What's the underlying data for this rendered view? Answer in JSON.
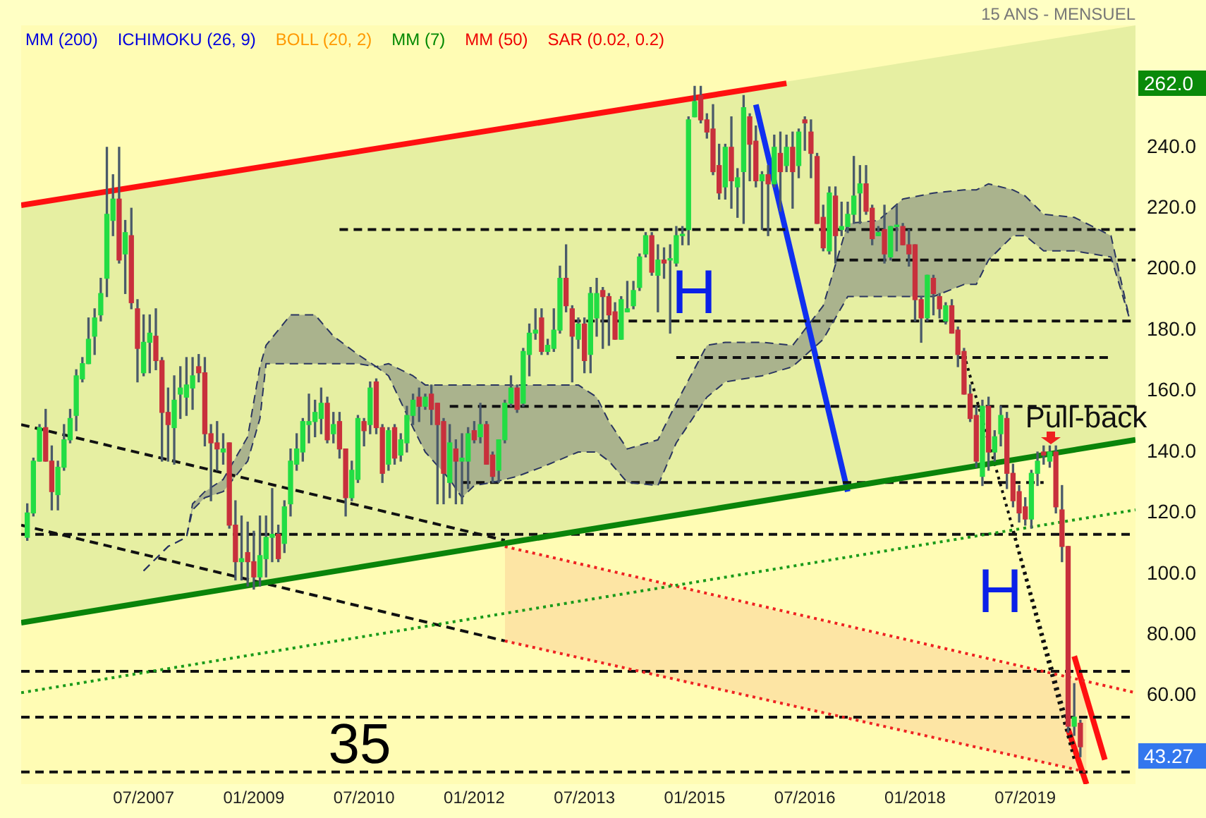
{
  "chart_data": {
    "type": "candlestick",
    "annotations": [
      "MM (200)",
      "ICHIMOKU (26, 9)",
      "BOLL (20, 2)",
      "MM (7)",
      "MM (50)",
      "SAR (0.02, 0.2)",
      "15 ANS - MENSUEL",
      "H",
      "H",
      "Pull-back",
      "35",
      "262.0",
      "43.27"
    ],
    "x": [
      "2005-12",
      "2006-01",
      "2006-02",
      "2006-03",
      "2006-04",
      "2006-05",
      "2006-06",
      "2006-07",
      "2006-08",
      "2006-09",
      "2006-10",
      "2006-11",
      "2006-12",
      "2007-01",
      "2007-02",
      "2007-03",
      "2007-04",
      "2007-05",
      "2007-06",
      "2007-07",
      "2007-08",
      "2007-09",
      "2007-10",
      "2007-11",
      "2007-12",
      "2008-01",
      "2008-02",
      "2008-03",
      "2008-04",
      "2008-05",
      "2008-06",
      "2008-07",
      "2008-08",
      "2008-09",
      "2008-10",
      "2008-11",
      "2008-12",
      "2009-01",
      "2009-02",
      "2009-03",
      "2009-04",
      "2009-05",
      "2009-06",
      "2009-07",
      "2009-08",
      "2009-09",
      "2009-10",
      "2009-11",
      "2009-12",
      "2010-01",
      "2010-02",
      "2010-03",
      "2010-04",
      "2010-05",
      "2010-06",
      "2010-07",
      "2010-08",
      "2010-09",
      "2010-10",
      "2010-11",
      "2010-12",
      "2011-01",
      "2011-02",
      "2011-03",
      "2011-04",
      "2011-05",
      "2011-06",
      "2011-07",
      "2011-08",
      "2011-09",
      "2011-10",
      "2011-11",
      "2011-12",
      "2012-01",
      "2012-02",
      "2012-03",
      "2012-04",
      "2012-05",
      "2012-06",
      "2012-07",
      "2012-08",
      "2012-09",
      "2012-10",
      "2012-11",
      "2012-12",
      "2013-01",
      "2013-02",
      "2013-03",
      "2013-04",
      "2013-05",
      "2013-06",
      "2013-07",
      "2013-08",
      "2013-09",
      "2013-10",
      "2013-11",
      "2013-12",
      "2014-01",
      "2014-02",
      "2014-03",
      "2014-04",
      "2014-05",
      "2014-06",
      "2014-07",
      "2014-08",
      "2014-09",
      "2014-10",
      "2014-11",
      "2014-12",
      "2015-01",
      "2015-02",
      "2015-03",
      "2015-04",
      "2015-05",
      "2015-06",
      "2015-07",
      "2015-08",
      "2015-09",
      "2015-10",
      "2015-11",
      "2015-12",
      "2016-01",
      "2016-02",
      "2016-03",
      "2016-04",
      "2016-05",
      "2016-06",
      "2016-07",
      "2016-08",
      "2016-09",
      "2016-10",
      "2016-11",
      "2016-12",
      "2017-01",
      "2017-02",
      "2017-03",
      "2017-04",
      "2017-05",
      "2017-06",
      "2017-07",
      "2017-08",
      "2017-09",
      "2017-10",
      "2017-11",
      "2017-12",
      "2018-01",
      "2018-02",
      "2018-03",
      "2018-04",
      "2018-05",
      "2018-06",
      "2018-07",
      "2018-08",
      "2018-09",
      "2018-10",
      "2018-11",
      "2018-12",
      "2019-01",
      "2019-02",
      "2019-03",
      "2019-04",
      "2019-05",
      "2019-06",
      "2019-07",
      "2019-08",
      "2019-09",
      "2019-10",
      "2019-11",
      "2019-12",
      "2020-01",
      "2020-02",
      "2020-03",
      "2020-04"
    ],
    "ohlc": [
      [
        112,
        123,
        111,
        120
      ],
      [
        120,
        138,
        119,
        137
      ],
      [
        137,
        149,
        137,
        148
      ],
      [
        148,
        154,
        137,
        137
      ],
      [
        137,
        142,
        121,
        127
      ],
      [
        126,
        137,
        121,
        135
      ],
      [
        135,
        149,
        134,
        144
      ],
      [
        144,
        154,
        143,
        151
      ],
      [
        152,
        167,
        147,
        165
      ],
      [
        164,
        171,
        163,
        169
      ],
      [
        169,
        184,
        169,
        177
      ],
      [
        178,
        187,
        172,
        184
      ],
      [
        185,
        197,
        183,
        192
      ],
      [
        197,
        240,
        191,
        218
      ],
      [
        216,
        231,
        211,
        223
      ],
      [
        223,
        240,
        202,
        203
      ],
      [
        205,
        216,
        192,
        212
      ],
      [
        211,
        220,
        187,
        189
      ],
      [
        187,
        190,
        163,
        174
      ],
      [
        166,
        185,
        165,
        176
      ],
      [
        176,
        185,
        166,
        179
      ],
      [
        178,
        187,
        167,
        170
      ],
      [
        170,
        171,
        137,
        153
      ],
      [
        153,
        161,
        137,
        149
      ],
      [
        148,
        165,
        136,
        157
      ],
      [
        159,
        168,
        151,
        161
      ],
      [
        158,
        171,
        152,
        162
      ],
      [
        161,
        171,
        154,
        165
      ],
      [
        168,
        172,
        163,
        166
      ],
      [
        166,
        171,
        142,
        146
      ],
      [
        146,
        149,
        124,
        143
      ],
      [
        143,
        150,
        134,
        141
      ],
      [
        140,
        146,
        136,
        141
      ],
      [
        143,
        143,
        115,
        116
      ],
      [
        116,
        124,
        98,
        104
      ],
      [
        104,
        119,
        98,
        105
      ],
      [
        107,
        117,
        96,
        104
      ],
      [
        104,
        114,
        95,
        99
      ],
      [
        99,
        119,
        96,
        106
      ],
      [
        105,
        119,
        99,
        112
      ],
      [
        112,
        128,
        104,
        113
      ],
      [
        113,
        116,
        104,
        105
      ],
      [
        110,
        124,
        107,
        122
      ],
      [
        123,
        141,
        119,
        137
      ],
      [
        136,
        146,
        134,
        141
      ],
      [
        140,
        151,
        137,
        150
      ],
      [
        149,
        159,
        143,
        150
      ],
      [
        150,
        157,
        145,
        153
      ],
      [
        151,
        161,
        146,
        156
      ],
      [
        156,
        158,
        143,
        144
      ],
      [
        146,
        153,
        143,
        149
      ],
      [
        150,
        153,
        138,
        141
      ],
      [
        141,
        141,
        119,
        125
      ],
      [
        125,
        137,
        124,
        134
      ],
      [
        131,
        152,
        130,
        151
      ],
      [
        150,
        151,
        142,
        147
      ],
      [
        149,
        163,
        146,
        161
      ],
      [
        163,
        164,
        146,
        148
      ],
      [
        148,
        149,
        130,
        133
      ],
      [
        136,
        148,
        134,
        147
      ],
      [
        148,
        149,
        136,
        138
      ],
      [
        139,
        146,
        137,
        144
      ],
      [
        143,
        155,
        140,
        152
      ],
      [
        152,
        159,
        149,
        157
      ],
      [
        158,
        161,
        150,
        155
      ],
      [
        155,
        159,
        154,
        158
      ],
      [
        159,
        162,
        149,
        154
      ],
      [
        156,
        156,
        123,
        149
      ],
      [
        150,
        151,
        123,
        133
      ],
      [
        130,
        149,
        125,
        143
      ],
      [
        141,
        144,
        123,
        137
      ],
      [
        137,
        146,
        123,
        138
      ],
      [
        137,
        148,
        128,
        146
      ],
      [
        147,
        150,
        143,
        144
      ],
      [
        145,
        156,
        143,
        149
      ],
      [
        149,
        150,
        136,
        136
      ],
      [
        139,
        140,
        130,
        132
      ],
      [
        134,
        144,
        130,
        144
      ],
      [
        144,
        157,
        143,
        156
      ],
      [
        156,
        165,
        155,
        161
      ],
      [
        161,
        162,
        153,
        154
      ],
      [
        156,
        174,
        155,
        173
      ],
      [
        172,
        182,
        165,
        179
      ],
      [
        179,
        187,
        177,
        180
      ],
      [
        184,
        187,
        172,
        173
      ],
      [
        173,
        177,
        172,
        175
      ],
      [
        174,
        187,
        173,
        180
      ],
      [
        180,
        201,
        179,
        197
      ],
      [
        197,
        208,
        186,
        188
      ],
      [
        187,
        188,
        163,
        178
      ],
      [
        177,
        184,
        174,
        182
      ],
      [
        182,
        184,
        166,
        170
      ],
      [
        172,
        194,
        166,
        192
      ],
      [
        184,
        197,
        178,
        192
      ],
      [
        193,
        194,
        174,
        191
      ],
      [
        191,
        192,
        175,
        185
      ],
      [
        186,
        189,
        177,
        177
      ],
      [
        177,
        191,
        177,
        190
      ],
      [
        186,
        196,
        186,
        187
      ],
      [
        188,
        196,
        187,
        193
      ],
      [
        194,
        205,
        193,
        204
      ],
      [
        205,
        212,
        204,
        211
      ],
      [
        211,
        212,
        198,
        199
      ],
      [
        198,
        208,
        186,
        203
      ],
      [
        203,
        207,
        197,
        202
      ],
      [
        203,
        208,
        179,
        203
      ],
      [
        202,
        214,
        201,
        211
      ],
      [
        211,
        214,
        208,
        211
      ],
      [
        213,
        250,
        208,
        249
      ],
      [
        250,
        260,
        250,
        255
      ],
      [
        257,
        260,
        248,
        249
      ],
      [
        249,
        251,
        243,
        245
      ],
      [
        246,
        254,
        231,
        232
      ],
      [
        234,
        241,
        223,
        225
      ],
      [
        227,
        241,
        223,
        240
      ],
      [
        240,
        250,
        220,
        229
      ],
      [
        227,
        233,
        217,
        230
      ],
      [
        232,
        257,
        215,
        253
      ],
      [
        250,
        251,
        229,
        241
      ],
      [
        242,
        247,
        227,
        229
      ],
      [
        229,
        232,
        213,
        231
      ],
      [
        231,
        234,
        211,
        228
      ],
      [
        228,
        244,
        227,
        240
      ],
      [
        238,
        245,
        219,
        232
      ],
      [
        234,
        244,
        232,
        240
      ],
      [
        240,
        245,
        220,
        232
      ],
      [
        234,
        246,
        230,
        245
      ],
      [
        249,
        250,
        239,
        248
      ],
      [
        245,
        249,
        230,
        238
      ],
      [
        237,
        238,
        215,
        215
      ],
      [
        217,
        221,
        206,
        207
      ],
      [
        206,
        227,
        205,
        225
      ],
      [
        224,
        227,
        202,
        211
      ],
      [
        213,
        222,
        211,
        214
      ],
      [
        214,
        222,
        212,
        218
      ],
      [
        218,
        237,
        215,
        224
      ],
      [
        225,
        234,
        215,
        228
      ],
      [
        228,
        234,
        218,
        219
      ],
      [
        220,
        221,
        208,
        210
      ],
      [
        211,
        214,
        211,
        212
      ],
      [
        213,
        221,
        202,
        205
      ],
      [
        204,
        214,
        203,
        214
      ],
      [
        214,
        221,
        206,
        214
      ],
      [
        214,
        215,
        208,
        208
      ],
      [
        208,
        213,
        201,
        205
      ],
      [
        208,
        208,
        183,
        190
      ],
      [
        190,
        191,
        176,
        184
      ],
      [
        184,
        198,
        183,
        198
      ],
      [
        197,
        198,
        185,
        192
      ],
      [
        191,
        192,
        184,
        187
      ],
      [
        183,
        189,
        182,
        188
      ],
      [
        188,
        190,
        179,
        179
      ],
      [
        180,
        181,
        168,
        172
      ],
      [
        173,
        174,
        159,
        159
      ],
      [
        159,
        162,
        150,
        151
      ],
      [
        152,
        155,
        135,
        137
      ],
      [
        132,
        157,
        129,
        155
      ],
      [
        155,
        158,
        134,
        140
      ],
      [
        140,
        147,
        137,
        145
      ],
      [
        146,
        155,
        142,
        152
      ],
      [
        151,
        153,
        128,
        133
      ],
      [
        133,
        136,
        122,
        124
      ],
      [
        127,
        129,
        117,
        120
      ],
      [
        122,
        125,
        116,
        118
      ],
      [
        118,
        134,
        115,
        133
      ],
      [
        133,
        140,
        129,
        137
      ],
      [
        140,
        142,
        136,
        139
      ],
      [
        137,
        142,
        135,
        140
      ],
      [
        140,
        142,
        120,
        122
      ],
      [
        121,
        129,
        104,
        109
      ],
      [
        109,
        109,
        48,
        50
      ],
      [
        50,
        64,
        47,
        53
      ],
      [
        51,
        52,
        40,
        43.27
      ]
    ],
    "series": [
      {
        "type": "line",
        "x": [
          "2005-11",
          "2021-01"
        ],
        "values": [
          84,
          144
        ],
        "lower": [
          84,
          144
        ],
        "upper": [
          221,
          280
        ],
        "color": "#0a840a",
        "line_style": "solid"
      },
      {
        "type": "line",
        "x": [
          "2012-06",
          "2020-05"
        ],
        "values": [
          78,
          35
        ],
        "lower": [
          78,
          35
        ],
        "upper": [
          109,
          64
        ],
        "color": "#ee2222",
        "line_style": "dotted"
      },
      {
        "type": "line",
        "x": [
          "2007-07",
          "2007-11",
          "2008-02",
          "2008-03",
          "2008-05",
          "2008-08",
          "2008-12",
          "2009-02",
          "2009-03",
          "2009-07",
          "2009-11",
          "2010-02",
          "2010-04",
          "2010-06",
          "2010-09",
          "2010-11",
          "2011-03",
          "2011-05",
          "2011-09",
          "2011-11",
          "2012-01",
          "2012-04",
          "2012-08",
          "2012-12",
          "2013-06",
          "2013-09",
          "2013-11",
          "2014-02",
          "2014-07",
          "2014-10",
          "2015-03",
          "2015-06",
          "2015-12",
          "2016-05",
          "2016-10",
          "2017-02",
          "2017-07",
          "2017-11",
          "2018-04",
          "2018-09",
          "2018-11",
          "2019-01",
          "2019-05",
          "2019-07",
          "2019-10",
          "2020-03",
          "2020-09",
          "2020-12"
        ],
        "lower": [
          101,
          109,
          112,
          121,
          125,
          127,
          137,
          151,
          169,
          169,
          169,
          169,
          169,
          169,
          168,
          165,
          148,
          140,
          131,
          125,
          129,
          130,
          132,
          135,
          140,
          140,
          137,
          130,
          129,
          143,
          158,
          163,
          165,
          168,
          177,
          191,
          191,
          191,
          191,
          195,
          195,
          203,
          211,
          211,
          206,
          206,
          204,
          184
        ],
        "upper": [
          101,
          109,
          112,
          123,
          127,
          131,
          145,
          168,
          175,
          185,
          185,
          178,
          175,
          172,
          168,
          169,
          165,
          162,
          162,
          162,
          162,
          162,
          162,
          162,
          162,
          158,
          150,
          141,
          144,
          156,
          175,
          176,
          176,
          175,
          188,
          215,
          216,
          223,
          225,
          226,
          226,
          228,
          226,
          224,
          218,
          217,
          211,
          184
        ],
        "values": [
          101,
          109,
          112,
          123,
          127,
          131,
          145,
          168,
          175,
          185,
          185,
          178,
          175,
          172,
          168,
          169,
          165,
          162,
          162,
          162,
          162,
          162,
          162,
          162,
          162,
          158,
          150,
          141,
          144,
          156,
          175,
          176,
          176,
          175,
          188,
          215,
          216,
          223,
          225,
          226,
          226,
          228,
          226,
          224,
          218,
          217,
          211,
          184
        ],
        "color": "#2a3560",
        "line_style": "dashed"
      },
      {
        "type": "line",
        "x": [
          "2007-07",
          "2007-11",
          "2008-02",
          "2008-03",
          "2008-05",
          "2008-08",
          "2008-12",
          "2009-02",
          "2009-03",
          "2009-07",
          "2009-11",
          "2010-02",
          "2010-04",
          "2010-06",
          "2010-09",
          "2010-11",
          "2011-03",
          "2011-05",
          "2011-09",
          "2011-11",
          "2012-01",
          "2012-04",
          "2012-08",
          "2012-12",
          "2013-06",
          "2013-09",
          "2013-11",
          "2014-02",
          "2014-07",
          "2014-10",
          "2015-03",
          "2015-06",
          "2015-12",
          "2016-05",
          "2016-10",
          "2017-02",
          "2017-07",
          "2017-11",
          "2018-04",
          "2018-09",
          "2018-11",
          "2019-01",
          "2019-05",
          "2019-07",
          "2019-10",
          "2020-03",
          "2020-09",
          "2020-12"
        ],
        "values": [
          101,
          109,
          112,
          121,
          125,
          127,
          137,
          151,
          169,
          169,
          169,
          169,
          169,
          169,
          168,
          165,
          148,
          140,
          131,
          125,
          129,
          130,
          132,
          135,
          140,
          140,
          137,
          130,
          129,
          143,
          158,
          163,
          165,
          168,
          177,
          191,
          191,
          191,
          191,
          195,
          195,
          203,
          211,
          211,
          206,
          206,
          204,
          184
        ],
        "color": "#2a3560",
        "line_style": "dashed"
      },
      {
        "type": "line",
        "x": [
          "2005-11",
          "2021-01"
        ],
        "values": [
          61,
          121
        ],
        "color": "#1a9a1a",
        "line_style": "dotted"
      },
      {
        "type": "line",
        "x": [
          "2005-11",
          "2012-06"
        ],
        "values": [
          149,
          111
        ],
        "color": "#111111",
        "line_style": "dashed"
      },
      {
        "type": "line",
        "x": [
          "2005-11",
          "2012-06"
        ],
        "values": [
          116,
          78
        ],
        "color": "#111111",
        "line_style": "dashed"
      },
      {
        "type": "line",
        "x": [
          "2012-06",
          "2021-01"
        ],
        "values": [
          109,
          61
        ],
        "color": "#ee2222",
        "line_style": "dotted"
      },
      {
        "type": "line",
        "x": [
          "2010-03",
          "2021-01"
        ],
        "values": [
          213,
          213
        ],
        "color": "#111111",
        "line_style": "dashed"
      },
      {
        "type": "line",
        "x": [
          "2016-12",
          "2021-01"
        ],
        "values": [
          203,
          203
        ],
        "color": "#111111",
        "line_style": "dashed"
      },
      {
        "type": "line",
        "x": [
          "2013-05",
          "2021-01"
        ],
        "values": [
          183,
          183
        ],
        "color": "#111111",
        "line_style": "dashed"
      },
      {
        "type": "line",
        "x": [
          "2014-10",
          "2020-09"
        ],
        "values": [
          171,
          171
        ],
        "color": "#111111",
        "line_style": "dashed"
      },
      {
        "type": "line",
        "x": [
          "2011-09",
          "2021-01"
        ],
        "values": [
          155,
          155
        ],
        "color": "#111111",
        "line_style": "dashed"
      },
      {
        "type": "line",
        "x": [
          "2011-11",
          "2019-10"
        ],
        "values": [
          130,
          130
        ],
        "color": "#111111",
        "line_style": "dashed"
      },
      {
        "type": "line",
        "x": [
          "2005-11",
          "2021-01"
        ],
        "values": [
          113,
          113
        ],
        "color": "#111111",
        "line_style": "dashed"
      },
      {
        "type": "line",
        "x": [
          "2005-11",
          "2021-01"
        ],
        "values": [
          68,
          68
        ],
        "color": "#111111",
        "line_style": "dashed"
      },
      {
        "type": "line",
        "x": [
          "2005-11",
          "2021-01"
        ],
        "values": [
          53,
          53
        ],
        "color": "#111111",
        "line_style": "dashed"
      },
      {
        "type": "line",
        "x": [
          "2005-11",
          "2021-01"
        ],
        "values": [
          35,
          35
        ],
        "color": "#111111",
        "line_style": "dashed"
      },
      {
        "type": "line",
        "x": [
          "2018-09",
          "2020-03"
        ],
        "values": [
          172,
          43
        ],
        "color": "#111111",
        "line_style": "dotted"
      },
      {
        "type": "line",
        "x": [
          "2019-05",
          "2020-03"
        ],
        "values": [
          114,
          39
        ],
        "color": "#111111",
        "line_style": "dotted"
      },
      {
        "type": "line",
        "x": [
          "2005-11",
          "2016-04"
        ],
        "values": [
          221,
          261
        ],
        "color": "#ff1010",
        "line_style": "solid"
      },
      {
        "type": "line",
        "x": [
          "2015-11",
          "2017-02"
        ],
        "values": [
          254,
          127
        ],
        "color": "#1030f0",
        "line_style": "solid"
      },
      {
        "type": "line",
        "x": [
          "2020-03",
          "2020-08"
        ],
        "values": [
          73,
          39
        ],
        "color": "#ff1010",
        "line_style": "solid"
      },
      {
        "type": "line",
        "x": [
          "2020-02",
          "2020-05"
        ],
        "values": [
          49,
          31
        ],
        "color": "#ff1010",
        "line_style": "solid"
      }
    ],
    "xlim": [
      "2005-11",
      "2021-01"
    ],
    "xticks": [
      {
        "value": "2007-07",
        "label": "07/2007"
      },
      {
        "value": "2009-01",
        "label": "01/2009"
      },
      {
        "value": "2010-07",
        "label": "07/2010"
      },
      {
        "value": "2012-01",
        "label": "01/2012"
      },
      {
        "value": "2013-07",
        "label": "07/2013"
      },
      {
        "value": "2015-01",
        "label": "01/2015"
      },
      {
        "value": "2016-07",
        "label": "07/2016"
      },
      {
        "value": "2018-01",
        "label": "01/2018"
      },
      {
        "value": "2019-07",
        "label": "07/2019"
      }
    ],
    "ylim": [
      31,
      280
    ],
    "yticks": [
      {
        "value": 60,
        "label": "60.00"
      },
      {
        "value": 80,
        "label": "80.00"
      },
      {
        "value": 100,
        "label": "100.0"
      },
      {
        "value": 120,
        "label": "120.0"
      },
      {
        "value": 140,
        "label": "140.0"
      },
      {
        "value": 160,
        "label": "160.0"
      },
      {
        "value": 180,
        "label": "180.0"
      },
      {
        "value": 200,
        "label": "200.0"
      },
      {
        "value": 220,
        "label": "220.0"
      },
      {
        "value": 240,
        "label": "240.0"
      }
    ],
    "legend": false,
    "marker": "none"
  }
}
